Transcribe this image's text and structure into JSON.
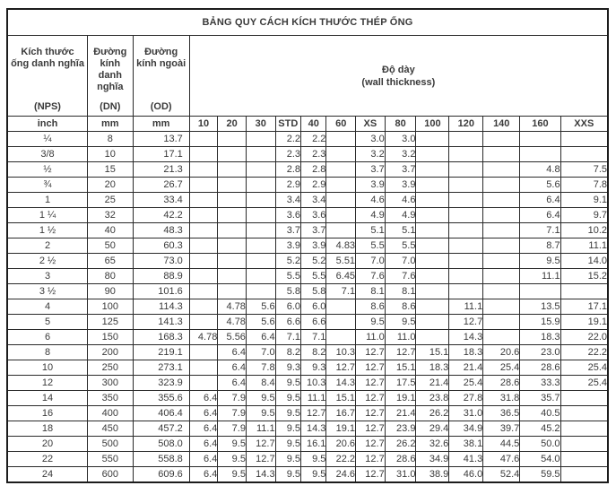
{
  "title": "BẢNG QUY CÁCH KÍCH THƯỚC THÉP ỐNG",
  "colors": {
    "background": "#ffffff",
    "border": "#1c1c1c",
    "text": "#3a3a3a"
  },
  "header": {
    "nps": {
      "label": "Kích thước ống danh nghĩa",
      "abbr": "(NPS)",
      "unit": "inch"
    },
    "dn": {
      "label": "Đường kính danh nghĩa",
      "abbr": "(DN)",
      "unit": "mm"
    },
    "od": {
      "label": "Đường kính ngoài",
      "abbr": "(OD)",
      "unit": "mm"
    },
    "thickness": {
      "label": "Độ dày",
      "sublabel": "(wall thickness)"
    },
    "schedules": [
      "10",
      "20",
      "30",
      "STD",
      "40",
      "60",
      "XS",
      "80",
      "100",
      "120",
      "140",
      "160",
      "XXS"
    ]
  },
  "rows": [
    {
      "nps": "¼",
      "dn": "8",
      "od": "13.7",
      "t": [
        "",
        "",
        "",
        "2.2",
        "2.2",
        "",
        "3.0",
        "3.0",
        "",
        "",
        "",
        "",
        ""
      ]
    },
    {
      "nps": "3/8",
      "dn": "10",
      "od": "17.1",
      "t": [
        "",
        "",
        "",
        "2.3",
        "2.3",
        "",
        "3.2",
        "3.2",
        "",
        "",
        "",
        "",
        ""
      ]
    },
    {
      "nps": "½",
      "dn": "15",
      "od": "21.3",
      "t": [
        "",
        "",
        "",
        "2.8",
        "2.8",
        "",
        "3.7",
        "3.7",
        "",
        "",
        "",
        "4.8",
        "7.5"
      ]
    },
    {
      "nps": "¾",
      "dn": "20",
      "od": "26.7",
      "t": [
        "",
        "",
        "",
        "2.9",
        "2.9",
        "",
        "3.9",
        "3.9",
        "",
        "",
        "",
        "5.6",
        "7.8"
      ]
    },
    {
      "nps": "1",
      "dn": "25",
      "od": "33.4",
      "t": [
        "",
        "",
        "",
        "3.4",
        "3.4",
        "",
        "4.6",
        "4.6",
        "",
        "",
        "",
        "6.4",
        "9.1"
      ]
    },
    {
      "nps": "1 ¼",
      "dn": "32",
      "od": "42.2",
      "t": [
        "",
        "",
        "",
        "3.6",
        "3.6",
        "",
        "4.9",
        "4.9",
        "",
        "",
        "",
        "6.4",
        "9.7"
      ]
    },
    {
      "nps": "1 ½",
      "dn": "40",
      "od": "48.3",
      "t": [
        "",
        "",
        "",
        "3.7",
        "3.7",
        "",
        "5.1",
        "5.1",
        "",
        "",
        "",
        "7.1",
        "10.2"
      ]
    },
    {
      "nps": "2",
      "dn": "50",
      "od": "60.3",
      "t": [
        "",
        "",
        "",
        "3.9",
        "3.9",
        "4.83",
        "5.5",
        "5.5",
        "",
        "",
        "",
        "8.7",
        "11.1"
      ]
    },
    {
      "nps": "2 ½",
      "dn": "65",
      "od": "73.0",
      "t": [
        "",
        "",
        "",
        "5.2",
        "5.2",
        "5.51",
        "7.0",
        "7.0",
        "",
        "",
        "",
        "9.5",
        "14.0"
      ]
    },
    {
      "nps": "3",
      "dn": "80",
      "od": "88.9",
      "t": [
        "",
        "",
        "",
        "5.5",
        "5.5",
        "6.45",
        "7.6",
        "7.6",
        "",
        "",
        "",
        "11.1",
        "15.2"
      ]
    },
    {
      "nps": "3 ½",
      "dn": "90",
      "od": "101.6",
      "t": [
        "",
        "",
        "",
        "5.8",
        "5.8",
        "7.1",
        "8.1",
        "8.1",
        "",
        "",
        "",
        "",
        ""
      ]
    },
    {
      "nps": "4",
      "dn": "100",
      "od": "114.3",
      "t": [
        "",
        "4.78",
        "5.6",
        "6.0",
        "6.0",
        "",
        "8.6",
        "8.6",
        "",
        "11.1",
        "",
        "13.5",
        "17.1"
      ]
    },
    {
      "nps": "5",
      "dn": "125",
      "od": "141.3",
      "t": [
        "",
        "4.78",
        "5.6",
        "6.6",
        "6.6",
        "",
        "9.5",
        "9.5",
        "",
        "12.7",
        "",
        "15.9",
        "19.1"
      ]
    },
    {
      "nps": "6",
      "dn": "150",
      "od": "168.3",
      "t": [
        "4.78",
        "5.56",
        "6.4",
        "7.1",
        "7.1",
        "",
        "11.0",
        "11.0",
        "",
        "14.3",
        "",
        "18.3",
        "22.0"
      ]
    },
    {
      "nps": "8",
      "dn": "200",
      "od": "219.1",
      "t": [
        "",
        "6.4",
        "7.0",
        "8.2",
        "8.2",
        "10.3",
        "12.7",
        "12.7",
        "15.1",
        "18.3",
        "20.6",
        "23.0",
        "22.2"
      ]
    },
    {
      "nps": "10",
      "dn": "250",
      "od": "273.1",
      "t": [
        "",
        "6.4",
        "7.8",
        "9.3",
        "9.3",
        "12.7",
        "12.7",
        "15.1",
        "18.3",
        "21.4",
        "25.4",
        "28.6",
        "25.4"
      ]
    },
    {
      "nps": "12",
      "dn": "300",
      "od": "323.9",
      "t": [
        "",
        "6.4",
        "8.4",
        "9.5",
        "10.3",
        "14.3",
        "12.7",
        "17.5",
        "21.4",
        "25.4",
        "28.6",
        "33.3",
        "25.4"
      ]
    },
    {
      "nps": "14",
      "dn": "350",
      "od": "355.6",
      "t": [
        "6.4",
        "7.9",
        "9.5",
        "9.5",
        "11.1",
        "15.1",
        "12.7",
        "19.1",
        "23.8",
        "27.8",
        "31.8",
        "35.7",
        ""
      ]
    },
    {
      "nps": "16",
      "dn": "400",
      "od": "406.4",
      "t": [
        "6.4",
        "7.9",
        "9.5",
        "9.5",
        "12.7",
        "16.7",
        "12.7",
        "21.4",
        "26.2",
        "31.0",
        "36.5",
        "40.5",
        ""
      ]
    },
    {
      "nps": "18",
      "dn": "450",
      "od": "457.2",
      "t": [
        "6.4",
        "7.9",
        "11.1",
        "9.5",
        "14.3",
        "19.1",
        "12.7",
        "23.9",
        "29.4",
        "34.9",
        "39.7",
        "45.2",
        ""
      ]
    },
    {
      "nps": "20",
      "dn": "500",
      "od": "508.0",
      "t": [
        "6.4",
        "9.5",
        "12.7",
        "9.5",
        "16.1",
        "20.6",
        "12.7",
        "26.2",
        "32.6",
        "38.1",
        "44.5",
        "50.0",
        ""
      ]
    },
    {
      "nps": "22",
      "dn": "550",
      "od": "558.8",
      "t": [
        "6.4",
        "9.5",
        "12.7",
        "9.5",
        "9.5",
        "22.2",
        "12.7",
        "28.6",
        "34.9",
        "41.3",
        "47.6",
        "54.0",
        ""
      ]
    },
    {
      "nps": "24",
      "dn": "600",
      "od": "609.6",
      "t": [
        "6.4",
        "9.5",
        "14.3",
        "9.5",
        "9.5",
        "24.6",
        "12.7",
        "31.0",
        "38.9",
        "46.0",
        "52.4",
        "59.5",
        ""
      ]
    }
  ]
}
